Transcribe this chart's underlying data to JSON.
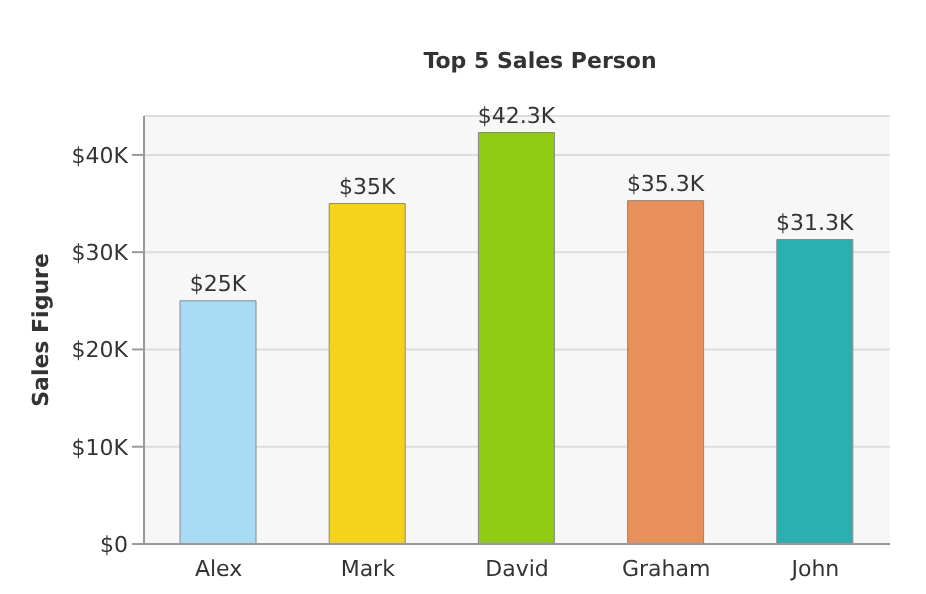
{
  "chart_data": {
    "type": "bar",
    "title": "Top 5 Sales Person",
    "ylabel": "Sales Figure",
    "categories": [
      "Alex",
      "Mark",
      "David",
      "Graham",
      "John"
    ],
    "values": [
      25,
      35,
      42.3,
      35.3,
      31.3
    ],
    "colors": [
      "#a8dcf5",
      "#f5d31a",
      "#8fcc13",
      "#e8905a",
      "#2ab0b0"
    ],
    "value_labels": [
      "$25K",
      "$35K",
      "$42.3K",
      "$35.3K",
      "$31.3K"
    ],
    "ylim": [
      0,
      44
    ],
    "yticks": [
      {
        "value": 0,
        "label": "$0"
      },
      {
        "value": 10,
        "label": "$10K"
      },
      {
        "value": 20,
        "label": "$20K"
      },
      {
        "value": 30,
        "label": "$30K"
      },
      {
        "value": 40,
        "label": "$40K"
      }
    ],
    "grid": "y",
    "legend": false
  }
}
